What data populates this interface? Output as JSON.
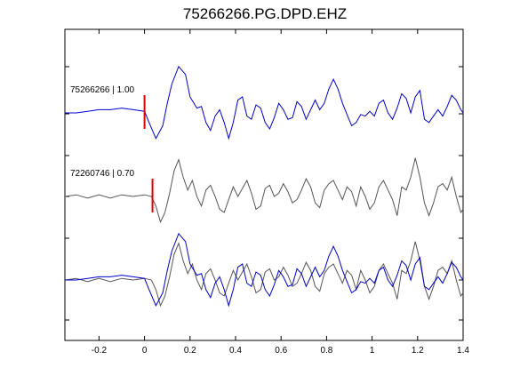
{
  "chart_data": {
    "type": "line",
    "title": "75266266.PG.DPD.EHZ",
    "xlabel": "",
    "ylabel": "",
    "xlim": [
      -0.35,
      1.4
    ],
    "xticks": [
      -0.2,
      0,
      0.2,
      0.4,
      0.6,
      0.8,
      1,
      1.2,
      1.4
    ],
    "xtick_labels": [
      "-0.2",
      "0",
      "0.2",
      "0.4",
      "0.6",
      "0.8",
      "1",
      "1.2",
      "1.4"
    ],
    "grid": false,
    "colors": {
      "primary": "#0000cc",
      "secondary": "#555555",
      "pick": "#dd0000"
    },
    "traces": [
      {
        "label": "75266266 | 1.00",
        "color": "#0000cc",
        "pick_time": 0.0,
        "points": [
          [
            -0.35,
            0.0
          ],
          [
            -0.3,
            0.0
          ],
          [
            -0.25,
            0.05
          ],
          [
            -0.2,
            0.1
          ],
          [
            -0.15,
            0.1
          ],
          [
            -0.1,
            0.15
          ],
          [
            -0.05,
            0.1
          ],
          [
            0.0,
            0.05
          ],
          [
            0.02,
            -0.3
          ],
          [
            0.05,
            -0.8
          ],
          [
            0.08,
            -0.4
          ],
          [
            0.1,
            0.3
          ],
          [
            0.12,
            0.9
          ],
          [
            0.15,
            1.45
          ],
          [
            0.18,
            1.2
          ],
          [
            0.2,
            0.5
          ],
          [
            0.23,
            0.15
          ],
          [
            0.25,
            0.2
          ],
          [
            0.27,
            -0.3
          ],
          [
            0.29,
            -0.55
          ],
          [
            0.31,
            -0.1
          ],
          [
            0.33,
            0.1
          ],
          [
            0.35,
            -0.3
          ],
          [
            0.37,
            -0.8
          ],
          [
            0.39,
            -0.3
          ],
          [
            0.41,
            0.4
          ],
          [
            0.43,
            0.5
          ],
          [
            0.45,
            -0.1
          ],
          [
            0.47,
            -0.2
          ],
          [
            0.49,
            0.25
          ],
          [
            0.51,
            0.15
          ],
          [
            0.53,
            -0.3
          ],
          [
            0.55,
            -0.5
          ],
          [
            0.57,
            -0.15
          ],
          [
            0.59,
            0.3
          ],
          [
            0.61,
            0.1
          ],
          [
            0.63,
            -0.2
          ],
          [
            0.65,
            -0.15
          ],
          [
            0.67,
            0.35
          ],
          [
            0.69,
            0.2
          ],
          [
            0.71,
            -0.2
          ],
          [
            0.73,
            0.1
          ],
          [
            0.75,
            0.4
          ],
          [
            0.77,
            0.1
          ],
          [
            0.79,
            0.3
          ],
          [
            0.81,
            0.75
          ],
          [
            0.83,
            1.05
          ],
          [
            0.85,
            0.75
          ],
          [
            0.87,
            0.3
          ],
          [
            0.89,
            -0.05
          ],
          [
            0.91,
            -0.4
          ],
          [
            0.93,
            -0.3
          ],
          [
            0.95,
            -0.05
          ],
          [
            0.97,
            -0.1
          ],
          [
            0.99,
            0.05
          ],
          [
            1.01,
            -0.1
          ],
          [
            1.03,
            0.3
          ],
          [
            1.05,
            0.4
          ],
          [
            1.07,
            0.0
          ],
          [
            1.09,
            -0.2
          ],
          [
            1.11,
            0.15
          ],
          [
            1.13,
            0.6
          ],
          [
            1.15,
            0.45
          ],
          [
            1.17,
            0.0
          ],
          [
            1.19,
            0.5
          ],
          [
            1.21,
            0.7
          ],
          [
            1.23,
            -0.2
          ],
          [
            1.25,
            -0.3
          ],
          [
            1.27,
            -0.1
          ],
          [
            1.29,
            0.1
          ],
          [
            1.31,
            -0.1
          ],
          [
            1.33,
            0.2
          ],
          [
            1.35,
            0.55
          ],
          [
            1.37,
            0.4
          ],
          [
            1.39,
            0.1
          ],
          [
            1.4,
            0.0
          ]
        ]
      },
      {
        "label": "72260746 | 0.70",
        "color": "#555555",
        "pick_time": 0.035,
        "points": [
          [
            -0.35,
            0.0
          ],
          [
            -0.3,
            0.05
          ],
          [
            -0.25,
            -0.05
          ],
          [
            -0.2,
            0.05
          ],
          [
            -0.15,
            -0.05
          ],
          [
            -0.1,
            0.05
          ],
          [
            -0.05,
            0.0
          ],
          [
            0.0,
            0.05
          ],
          [
            0.03,
            0.0
          ],
          [
            0.05,
            -0.3
          ],
          [
            0.07,
            -0.8
          ],
          [
            0.09,
            -0.5
          ],
          [
            0.11,
            0.1
          ],
          [
            0.13,
            0.8
          ],
          [
            0.15,
            1.15
          ],
          [
            0.17,
            0.6
          ],
          [
            0.19,
            0.2
          ],
          [
            0.21,
            0.5
          ],
          [
            0.23,
            0.0
          ],
          [
            0.25,
            -0.3
          ],
          [
            0.27,
            0.2
          ],
          [
            0.29,
            0.35
          ],
          [
            0.31,
            0.0
          ],
          [
            0.33,
            -0.4
          ],
          [
            0.35,
            -0.5
          ],
          [
            0.37,
            -0.1
          ],
          [
            0.39,
            0.3
          ],
          [
            0.41,
            0.0
          ],
          [
            0.43,
            0.25
          ],
          [
            0.45,
            0.5
          ],
          [
            0.47,
            0.1
          ],
          [
            0.49,
            -0.4
          ],
          [
            0.51,
            -0.3
          ],
          [
            0.53,
            0.25
          ],
          [
            0.55,
            0.35
          ],
          [
            0.57,
            0.0
          ],
          [
            0.59,
            0.1
          ],
          [
            0.61,
            0.4
          ],
          [
            0.63,
            0.15
          ],
          [
            0.65,
            -0.2
          ],
          [
            0.67,
            -0.1
          ],
          [
            0.69,
            0.2
          ],
          [
            0.71,
            0.55
          ],
          [
            0.73,
            0.3
          ],
          [
            0.75,
            -0.2
          ],
          [
            0.77,
            -0.35
          ],
          [
            0.79,
            0.2
          ],
          [
            0.81,
            0.4
          ],
          [
            0.83,
            0.5
          ],
          [
            0.85,
            0.2
          ],
          [
            0.87,
            -0.1
          ],
          [
            0.89,
            0.3
          ],
          [
            0.91,
            0.15
          ],
          [
            0.93,
            -0.3
          ],
          [
            0.95,
            0.3
          ],
          [
            0.97,
            0.0
          ],
          [
            0.99,
            -0.4
          ],
          [
            1.01,
            -0.2
          ],
          [
            1.03,
            0.3
          ],
          [
            1.05,
            0.5
          ],
          [
            1.07,
            0.2
          ],
          [
            1.09,
            -0.1
          ],
          [
            1.11,
            -0.6
          ],
          [
            1.13,
            0.3
          ],
          [
            1.15,
            0.2
          ],
          [
            1.17,
            0.6
          ],
          [
            1.19,
            1.2
          ],
          [
            1.21,
            0.6
          ],
          [
            1.23,
            -0.2
          ],
          [
            1.25,
            -0.6
          ],
          [
            1.27,
            -0.2
          ],
          [
            1.29,
            0.3
          ],
          [
            1.31,
            0.4
          ],
          [
            1.33,
            0.2
          ],
          [
            1.35,
            0.6
          ],
          [
            1.37,
            0.0
          ],
          [
            1.39,
            -0.5
          ],
          [
            1.4,
            -0.4
          ]
        ]
      },
      {
        "label": "",
        "color": "#555555",
        "offset_time": 0.035,
        "of_trace": 1
      },
      {
        "label": "",
        "color": "#0000cc",
        "of_trace": 0
      }
    ]
  }
}
